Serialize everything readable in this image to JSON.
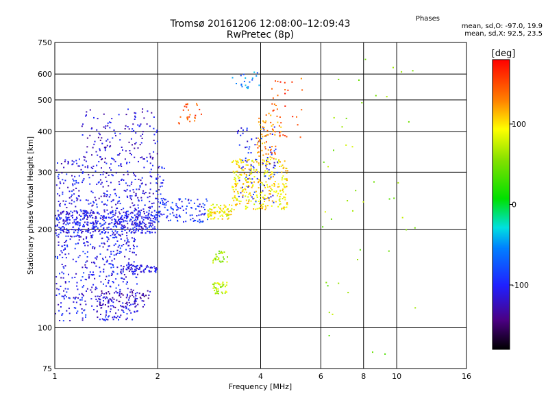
{
  "title_line1": "Tromsø 20161206 12:08:00–12:09:43",
  "title_line2": "RwPretec (8p)",
  "stats": {
    "heading": "Phases",
    "line1": "mean, sd,O: -97.0, 19.9",
    "line2": "mean, sd,X:  92.5, 23.5"
  },
  "colorbar": {
    "label": "[deg]",
    "range": [
      -180,
      180
    ],
    "ticks": [
      "100",
      "0",
      "-100"
    ],
    "tick_values": [
      100,
      0,
      -100
    ]
  },
  "chart_data": {
    "type": "scatter",
    "xlabel": "Frequency [MHz]",
    "ylabel": "Stationary phase Virtual Height [km]",
    "x_scale": "log",
    "y_scale": "log",
    "xlim": [
      1,
      16
    ],
    "ylim": [
      75,
      750
    ],
    "x_ticks": [
      1,
      2,
      4,
      6,
      8,
      10,
      16
    ],
    "x_tick_labels": [
      "1",
      "2",
      "4",
      "6",
      "8",
      "10",
      "16"
    ],
    "y_ticks": [
      75,
      100,
      200,
      300,
      400,
      500,
      600,
      750
    ],
    "y_tick_labels": [
      "75",
      "100",
      "200",
      "300",
      "400",
      "500",
      "600",
      "750"
    ],
    "grid": true,
    "clusters": [
      {
        "x_range": [
          1.0,
          2.0
        ],
        "y_range": [
          195,
          230
        ],
        "phase": -105,
        "count": 520
      },
      {
        "x_range": [
          1.0,
          1.75
        ],
        "y_range": [
          105,
          195
        ],
        "phase": -105,
        "count": 430
      },
      {
        "x_range": [
          1.0,
          2.1
        ],
        "y_range": [
          230,
          330
        ],
        "phase": -110,
        "count": 300
      },
      {
        "x_range": [
          1.2,
          2.0
        ],
        "y_range": [
          330,
          470
        ],
        "phase": -115,
        "count": 130
      },
      {
        "x_range": [
          1.35,
          1.9
        ],
        "y_range": [
          115,
          130
        ],
        "phase": -125,
        "count": 90
      },
      {
        "x_range": [
          1.55,
          2.0
        ],
        "y_range": [
          148,
          156
        ],
        "phase": -110,
        "count": 70
      },
      {
        "x_range": [
          2.0,
          2.8
        ],
        "y_range": [
          210,
          250
        ],
        "phase": -95,
        "count": 110
      },
      {
        "x_range": [
          2.8,
          3.3
        ],
        "y_range": [
          215,
          240
        ],
        "phase": 95,
        "count": 80
      },
      {
        "x_range": [
          3.3,
          4.8
        ],
        "y_range": [
          230,
          330
        ],
        "phase": 100,
        "count": 320
      },
      {
        "x_range": [
          3.4,
          4.5
        ],
        "y_range": [
          240,
          420
        ],
        "phase": -100,
        "count": 90
      },
      {
        "x_range": [
          3.9,
          4.6
        ],
        "y_range": [
          330,
          470
        ],
        "phase": 130,
        "count": 70
      },
      {
        "x_range": [
          2.9,
          3.2
        ],
        "y_range": [
          127,
          138
        ],
        "phase": 70,
        "count": 45
      },
      {
        "x_range": [
          2.9,
          3.2
        ],
        "y_range": [
          158,
          172
        ],
        "phase": 65,
        "count": 30
      },
      {
        "x_range": [
          2.3,
          2.7
        ],
        "y_range": [
          420,
          500
        ],
        "phase": 150,
        "count": 25
      },
      {
        "x_range": [
          3.2,
          4.0
        ],
        "y_range": [
          540,
          610
        ],
        "phase": -60,
        "count": 20
      },
      {
        "x_range": [
          4.3,
          5.3
        ],
        "y_range": [
          380,
          590
        ],
        "phase": 150,
        "count": 30
      },
      {
        "x_range": [
          5.8,
          11.5
        ],
        "y_range": [
          80,
          700
        ],
        "phase": 60,
        "count": 45
      }
    ]
  }
}
